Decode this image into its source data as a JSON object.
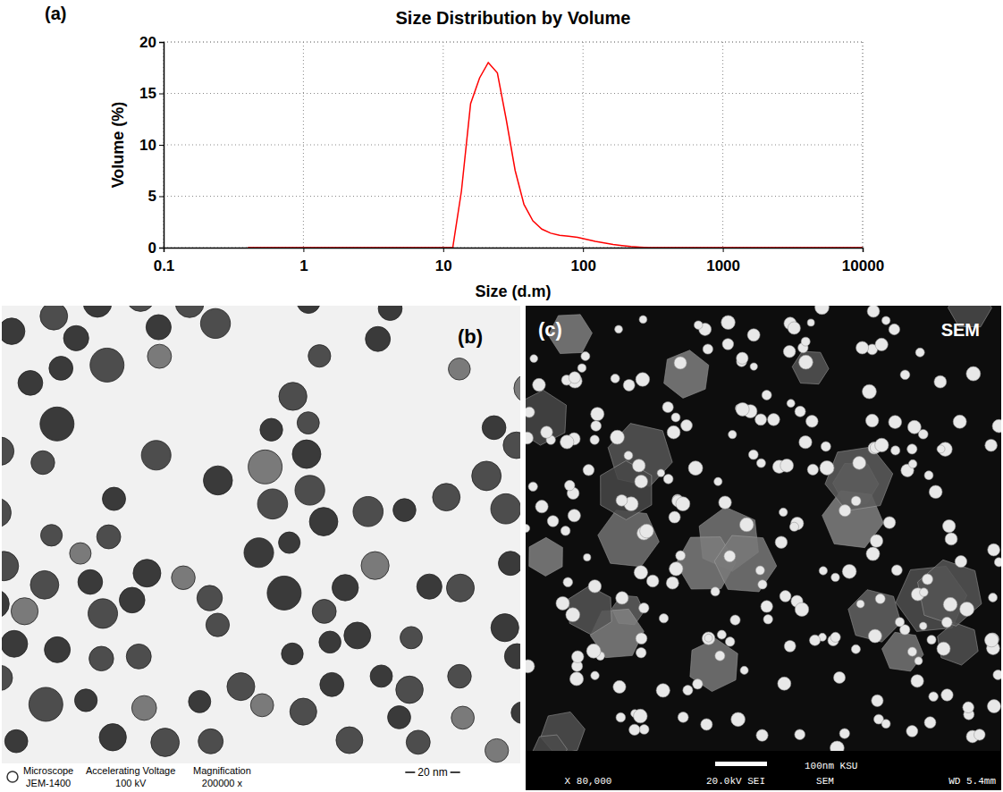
{
  "chart_data": {
    "type": "line",
    "panel": "(a)",
    "title": "Size Distribution by Volume",
    "x_label": "Size (d.m)",
    "y_label": "Volume (%)",
    "x": [
      0.4,
      1,
      2,
      5,
      10,
      11.7,
      13.5,
      15.7,
      18.2,
      21,
      24.4,
      28.2,
      32.7,
      37.8,
      43.8,
      50.7,
      58.8,
      68.1,
      78.8,
      91.3,
      105.7,
      122.4,
      141.8,
      164.2,
      190.1,
      220.2,
      255,
      295.3,
      342,
      500,
      1000,
      2000,
      5000,
      10000
    ],
    "values": [
      0,
      0,
      0,
      0,
      0,
      0,
      5.5,
      14,
      16.5,
      18,
      17,
      12.5,
      7.5,
      4.2,
      2.6,
      1.8,
      1.4,
      1.2,
      1.1,
      1.0,
      0.8,
      0.6,
      0.45,
      0.3,
      0.2,
      0.1,
      0.05,
      0,
      0,
      0,
      0,
      0,
      0,
      0
    ],
    "color": "#ff0000",
    "log": "x",
    "grid": true,
    "xlim": [
      0.1,
      10000
    ],
    "xticks": [
      0.1,
      1,
      10,
      100,
      1000,
      10000
    ],
    "ylim": [
      0,
      20
    ],
    "yticks": [
      0,
      5,
      10,
      15,
      20
    ]
  },
  "micrographs": [
    {
      "label": "(b)",
      "info_headers": [
        "Microscope",
        "Accelerating Voltage",
        "Magnification"
      ],
      "info_values": [
        "JEM-1400",
        "100 kV",
        "200000 x"
      ],
      "scale_bar": "20 nm"
    },
    {
      "label": "(c)",
      "title": "SEM",
      "scale_bar": "100nm KSU",
      "info": [
        "X 80,000",
        "20.0kV SEI",
        "SEM",
        "WD 5.4mm"
      ]
    }
  ]
}
